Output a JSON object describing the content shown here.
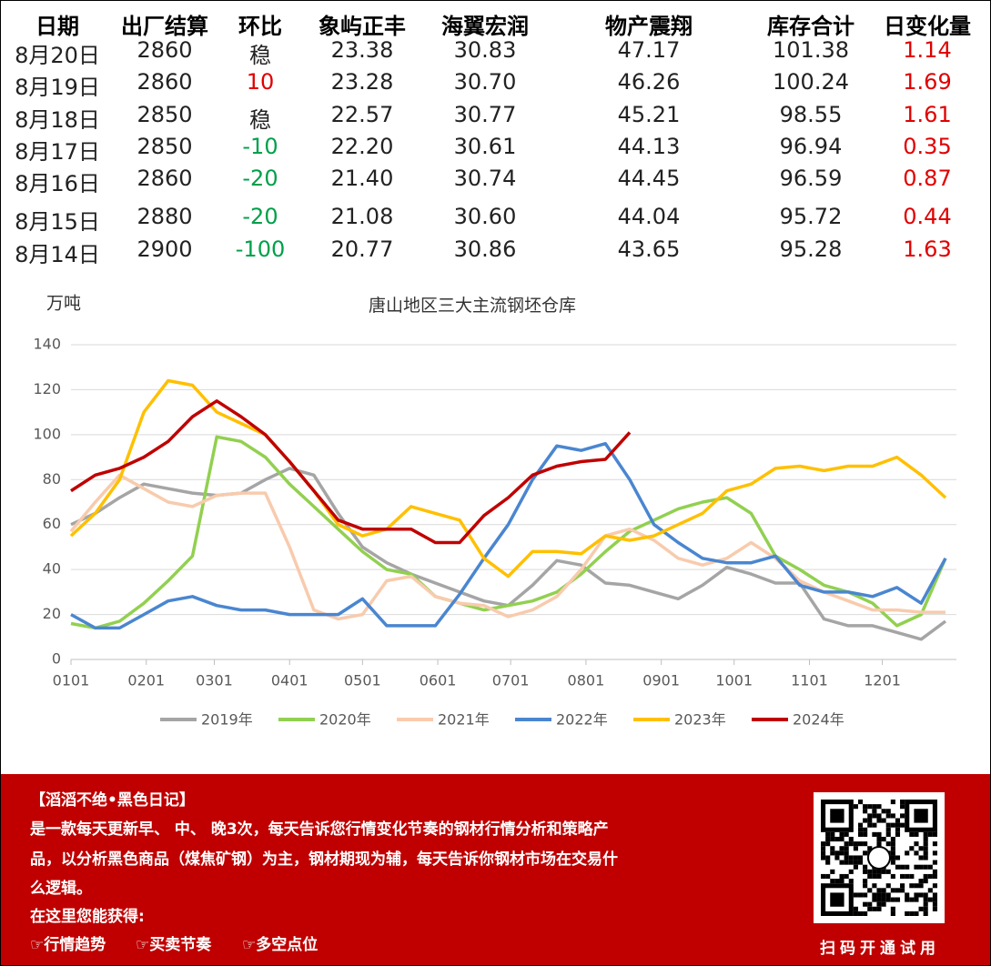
{
  "table": {
    "header": [
      "日期",
      "出厂结算",
      "环比",
      "象屿正丰",
      "海翼宏润",
      "物产震翔",
      "库存合计",
      "日变化量"
    ],
    "rows": [
      [
        "8月20日",
        "2860",
        "稳",
        "23.38",
        "30.83",
        "47.17",
        "101.38",
        "1.14"
      ],
      [
        "8月19日",
        "2860",
        "10",
        "23.28",
        "30.70",
        "46.26",
        "100.24",
        "1.69"
      ],
      [
        "8月18日",
        "2850",
        "稳",
        "22.57",
        "30.77",
        "45.21",
        "98.55",
        "1.61"
      ],
      [
        "8月17日",
        "2850",
        "-10",
        "22.20",
        "30.61",
        "44.13",
        "96.94",
        "0.35"
      ],
      [
        "8月16日",
        "2860",
        "-20",
        "21.40",
        "30.74",
        "44.45",
        "96.59",
        "0.87"
      ],
      [
        "8月15日",
        "2880",
        "-20",
        "21.08",
        "30.60",
        "44.04",
        "95.72",
        "0.44"
      ],
      [
        "8月14日",
        "2900",
        "-100",
        "20.77",
        "30.86",
        "43.65",
        "95.28",
        "1.63"
      ]
    ]
  },
  "chart_data": {
    "type": "line",
    "title": "唐山地区三大主流钢坯仓库",
    "y_label": "万吨",
    "x": [
      0,
      10,
      20,
      30,
      40,
      50,
      60,
      70,
      80,
      90,
      100,
      110,
      120,
      130,
      140,
      150,
      160,
      170,
      180,
      190,
      200,
      210,
      220,
      230,
      240,
      250,
      260,
      270,
      280,
      290,
      300,
      310,
      320,
      330,
      340,
      350,
      360
    ],
    "xlim": [
      0,
      366
    ],
    "xticks": [
      {
        "value": 0,
        "label": "0101"
      },
      {
        "value": 31,
        "label": "0201"
      },
      {
        "value": 59,
        "label": "0301"
      },
      {
        "value": 90,
        "label": "0401"
      },
      {
        "value": 120,
        "label": "0501"
      },
      {
        "value": 151,
        "label": "0601"
      },
      {
        "value": 181,
        "label": "0701"
      },
      {
        "value": 212,
        "label": "0801"
      },
      {
        "value": 243,
        "label": "0901"
      },
      {
        "value": 273,
        "label": "1001"
      },
      {
        "value": 304,
        "label": "1101"
      },
      {
        "value": 334,
        "label": "1201"
      }
    ],
    "ylim": [
      0,
      140
    ],
    "yticks": [
      0,
      20,
      40,
      60,
      80,
      100,
      120,
      140
    ],
    "grid": true,
    "series": [
      {
        "name": "2019年",
        "color": "#a5a5a5",
        "values": [
          60,
          65,
          72,
          78,
          76,
          74,
          73,
          74,
          80,
          85,
          82,
          65,
          50,
          43,
          38,
          34,
          30,
          26,
          24,
          33,
          44,
          42,
          34,
          33,
          30,
          27,
          33,
          41,
          38,
          34,
          34,
          18,
          15,
          15,
          12,
          9,
          17
        ]
      },
      {
        "name": "2020年",
        "color": "#92d050",
        "values": [
          16,
          14,
          17,
          25,
          35,
          46,
          99,
          97,
          90,
          78,
          68,
          58,
          48,
          40,
          38,
          28,
          25,
          22,
          24,
          26,
          30,
          38,
          48,
          57,
          62,
          67,
          70,
          72,
          65,
          46,
          40,
          33,
          30,
          25,
          15,
          20,
          45
        ]
      },
      {
        "name": "2021年",
        "color": "#f8cbad",
        "values": [
          57,
          70,
          82,
          76,
          70,
          68,
          73,
          74,
          74,
          50,
          22,
          18,
          20,
          35,
          37,
          28,
          25,
          24,
          19,
          22,
          28,
          40,
          55,
          58,
          53,
          45,
          42,
          45,
          52,
          45,
          35,
          30,
          26,
          22,
          22,
          21,
          21
        ]
      },
      {
        "name": "2022年",
        "color": "#4a86d0",
        "values": [
          20,
          14,
          14,
          20,
          26,
          28,
          24,
          22,
          22,
          20,
          20,
          20,
          27,
          15,
          15,
          15,
          29,
          45,
          60,
          80,
          95,
          93,
          96,
          80,
          60,
          52,
          45,
          43,
          43,
          46,
          33,
          30,
          30,
          28,
          32,
          25,
          45
        ]
      },
      {
        "name": "2023年",
        "color": "#ffc000",
        "values": [
          55,
          65,
          80,
          110,
          124,
          122,
          110,
          105,
          100,
          88,
          75,
          60,
          55,
          58,
          68,
          65,
          62,
          45,
          37,
          48,
          48,
          47,
          55,
          53,
          55,
          60,
          65,
          75,
          78,
          85,
          86,
          84,
          86,
          86,
          90,
          82,
          72
        ]
      },
      {
        "name": "2024年",
        "color": "#c00000",
        "values": [
          75,
          82,
          85,
          90,
          97,
          108,
          115,
          108,
          100,
          88,
          75,
          62,
          58,
          58,
          58,
          52,
          52,
          64,
          72,
          82,
          86,
          88,
          89,
          101,
          null,
          null,
          null,
          null,
          null,
          null,
          null,
          null,
          null,
          null,
          null,
          null,
          null
        ]
      }
    ]
  },
  "banner": {
    "title": "【滔滔不绝•黑色日记】",
    "lines": [
      "是一款每天更新早、 中、 晚3次，每天告诉您行情变化节奏的钢材行情分析和策略产",
      "品，以分析黑色商品（煤焦矿钢）为主，钢材期现为辅，每天告诉你钢材市场在交易什",
      "么逻辑。"
    ],
    "subtitle": "在这里您能获得:",
    "items": [
      "☞行情趋势",
      "☞买卖节奏",
      "☞多空点位"
    ],
    "qr_caption": "扫码开通试用"
  }
}
